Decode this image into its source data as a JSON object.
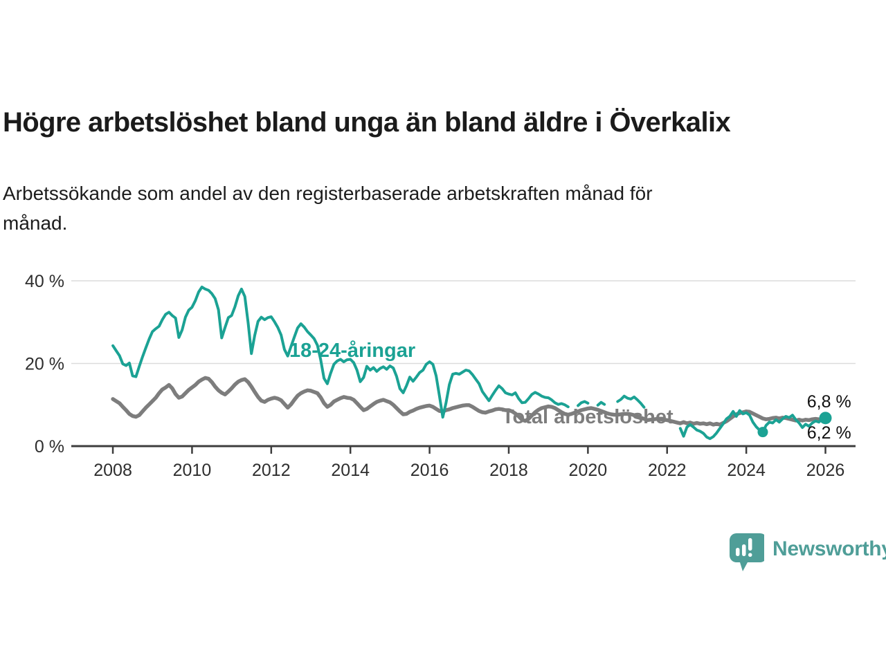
{
  "header": {
    "title": "Högre arbetslöshet bland unga än bland äldre i Överkalix",
    "subtitle_lines": [
      "Arbetssökande som andel av den registerbaserade arbetskraften månad för",
      "månad."
    ]
  },
  "footer": {
    "brand": "Newsworthy"
  },
  "colors": {
    "young_series": "#1ba294",
    "total_series": "#7d7d7d",
    "value_label": "#111111",
    "axis": "#3d3d3d",
    "grid": "#dbdbdb",
    "tick_label": "#2e2e2e",
    "logo": "#4f9e98"
  },
  "chart_data": {
    "type": "line",
    "title": "Högre arbetslöshet bland unga än bland äldre i Överkalix",
    "subtitle": "Arbetssökande som andel av den registerbaserade arbetskraften månad för månad.",
    "x_unit": "year (monthly points)",
    "y_unit": "percent of labour force",
    "x_start_year": 2008,
    "x_step_months": 1,
    "xlim": [
      2006.95,
      2026.76
    ],
    "ylim": [
      0,
      40
    ],
    "grid": "horizontal",
    "legend_position": "inline-labels",
    "x_ticks": [
      {
        "value": 2008,
        "label": "2008"
      },
      {
        "value": 2010,
        "label": "2010"
      },
      {
        "value": 2012,
        "label": "2012"
      },
      {
        "value": 2014,
        "label": "2014"
      },
      {
        "value": 2016,
        "label": "2016"
      },
      {
        "value": 2018,
        "label": "2018"
      },
      {
        "value": 2020,
        "label": "2020"
      },
      {
        "value": 2022,
        "label": "2022"
      },
      {
        "value": 2024,
        "label": "2024"
      },
      {
        "value": 2026,
        "label": "2026"
      }
    ],
    "y_ticks": [
      {
        "value": 0,
        "label": "0 %"
      },
      {
        "value": 20,
        "label": "20 %"
      },
      {
        "value": 40,
        "label": "40 %"
      }
    ],
    "series": [
      {
        "name": "18-24-åringar",
        "color": "#1ba294",
        "width": 4,
        "values": [
          24.3,
          23.1,
          21.9,
          19.9,
          19.5,
          20.1,
          17.0,
          16.8,
          19.3,
          21.6,
          23.8,
          25.9,
          27.7,
          28.4,
          29.0,
          30.6,
          31.9,
          32.4,
          31.6,
          31.0,
          26.3,
          28.1,
          31.2,
          32.9,
          33.6,
          35.2,
          37.3,
          38.5,
          38.0,
          37.7,
          36.9,
          35.7,
          33.0,
          26.2,
          28.7,
          31.1,
          31.6,
          33.7,
          36.4,
          38.0,
          36.2,
          29.8,
          22.4,
          26.8,
          30.2,
          31.2,
          30.6,
          31.1,
          31.3,
          30.1,
          28.7,
          26.9,
          23.4,
          21.8,
          24.1,
          26.4,
          28.6,
          29.6,
          28.8,
          27.7,
          26.9,
          26.0,
          24.4,
          20.9,
          16.4,
          15.1,
          17.6,
          19.8,
          20.6,
          21.0,
          20.4,
          20.9,
          21.0,
          20.2,
          18.4,
          15.6,
          16.6,
          19.3,
          18.4,
          19.0,
          18.1,
          18.8,
          19.2,
          18.6,
          19.4,
          18.9,
          16.9,
          13.9,
          12.9,
          14.6,
          16.7,
          15.7,
          16.7,
          17.8,
          18.4,
          19.8,
          20.4,
          19.8,
          17.0,
          12.1,
          7.0,
          10.5,
          14.9,
          17.4,
          17.6,
          17.4,
          17.9,
          18.4,
          18.2,
          17.3,
          16.2,
          15.1,
          13.2,
          12.1,
          11.0,
          12.3,
          13.5,
          14.6,
          13.9,
          12.9,
          12.6,
          12.4,
          12.9,
          11.5,
          10.5,
          10.6,
          11.5,
          12.5,
          13.0,
          12.6,
          12.1,
          11.8,
          11.7,
          11.2,
          10.5,
          10.1,
          10.3,
          10.0,
          9.5,
          null,
          null,
          9.8,
          10.5,
          10.8,
          10.4,
          null,
          null,
          9.9,
          10.6,
          10.1,
          null,
          null,
          null,
          10.8,
          11.3,
          12.1,
          11.6,
          11.4,
          11.9,
          11.2,
          10.4,
          9.4,
          null,
          null,
          null,
          null,
          null,
          null,
          null,
          null,
          null,
          null,
          4.3,
          2.4,
          4.6,
          5.2,
          4.6,
          3.9,
          3.6,
          3.1,
          2.2,
          1.8,
          2.3,
          3.2,
          4.3,
          5.4,
          6.6,
          7.2,
          8.4,
          7.2,
          8.6,
          7.8,
          8.1,
          7.5,
          5.8,
          4.7,
          3.9,
          3.4,
          5.0,
          5.8,
          5.6,
          6.4,
          5.8,
          6.6,
          7.2,
          6.9,
          7.5,
          6.4,
          5.6,
          4.5,
          5.3,
          4.8,
          5.6,
          6.1,
          5.8,
          6.6,
          6.8
        ]
      },
      {
        "name": "Total arbetslöshet",
        "color": "#7d7d7d",
        "width": 5.5,
        "values": [
          11.4,
          10.9,
          10.4,
          9.5,
          8.7,
          7.8,
          7.3,
          7.1,
          7.5,
          8.4,
          9.3,
          10.1,
          10.9,
          11.7,
          12.8,
          13.7,
          14.2,
          14.8,
          14.0,
          12.6,
          11.7,
          12.0,
          12.8,
          13.6,
          14.2,
          14.8,
          15.6,
          16.1,
          16.5,
          16.3,
          15.5,
          14.4,
          13.5,
          12.9,
          12.5,
          13.2,
          14.0,
          14.9,
          15.6,
          16.0,
          16.2,
          15.5,
          14.4,
          13.1,
          11.9,
          11.0,
          10.7,
          11.2,
          11.5,
          11.7,
          11.5,
          11.1,
          10.2,
          9.3,
          10.1,
          11.2,
          12.2,
          12.8,
          13.2,
          13.5,
          13.4,
          13.1,
          12.8,
          11.8,
          10.4,
          9.5,
          10.0,
          10.8,
          11.2,
          11.6,
          11.9,
          11.7,
          11.6,
          11.2,
          10.4,
          9.5,
          8.7,
          9.0,
          9.6,
          10.2,
          10.7,
          11.0,
          11.2,
          10.9,
          10.6,
          10.0,
          9.2,
          8.4,
          7.7,
          7.8,
          8.3,
          8.6,
          9.0,
          9.3,
          9.5,
          9.7,
          9.8,
          9.5,
          9.0,
          8.5,
          8.4,
          8.7,
          8.9,
          9.2,
          9.4,
          9.6,
          9.8,
          9.9,
          9.9,
          9.5,
          9.0,
          8.5,
          8.2,
          8.1,
          8.4,
          8.6,
          8.9,
          9.0,
          8.9,
          8.7,
          8.7,
          8.4,
          7.9,
          7.2,
          6.4,
          6.1,
          6.6,
          7.4,
          8.2,
          8.8,
          9.2,
          9.4,
          9.6,
          9.5,
          9.2,
          8.7,
          8.2,
          7.8,
          7.6,
          7.8,
          8.1,
          8.4,
          8.7,
          8.9,
          9.1,
          9.2,
          9.0,
          8.8,
          8.5,
          8.2,
          7.9,
          7.7,
          7.6,
          7.6,
          7.7,
          7.8,
          7.8,
          7.7,
          7.5,
          7.2,
          6.9,
          6.6,
          6.3,
          6.4,
          6.5,
          6.6,
          6.5,
          6.4,
          6.3,
          6.1,
          5.9,
          5.7,
          5.5,
          5.8,
          5.5,
          5.7,
          5.4,
          5.6,
          5.4,
          5.5,
          5.3,
          5.5,
          5.2,
          5.4,
          5.2,
          5.6,
          6.0,
          6.6,
          7.2,
          7.7,
          8.0,
          8.2,
          8.4,
          8.3,
          7.9,
          7.5,
          7.1,
          6.7,
          6.5,
          6.6,
          6.8,
          6.9,
          6.7,
          6.9,
          6.8,
          6.6,
          6.4,
          6.2,
          6.4,
          6.2,
          6.4,
          6.3,
          6.5,
          6.6,
          6.5,
          6.4,
          6.2
        ]
      }
    ],
    "markers": [
      {
        "series": 0,
        "year": 2024.417,
        "value": 3.4,
        "r": 7.5
      },
      {
        "series": 0,
        "year": 2026.0,
        "value": 6.8,
        "r": 9
      }
    ],
    "annotations": [
      {
        "text": "18-24-åringar",
        "year": 2014.05,
        "value": 21.6,
        "color": "#1ba294",
        "size": 29,
        "weight": "bold",
        "anchor": "middle",
        "name": "series-label-18-24"
      },
      {
        "text": "Total arbetslöshet",
        "year": 2019.99,
        "value": 5.5,
        "color": "#7d7d7d",
        "size": 29,
        "weight": "bold",
        "anchor": "middle",
        "name": "series-label-total"
      },
      {
        "text": "6,8 %",
        "year": 2026.65,
        "value": 9.4,
        "color": "#111111",
        "size": 25,
        "weight": "normal",
        "anchor": "end",
        "name": "value-label-young-latest"
      },
      {
        "text": "6,2 %",
        "year": 2026.65,
        "value": 1.8,
        "color": "#111111",
        "size": 25,
        "weight": "normal",
        "anchor": "end",
        "name": "value-label-total-latest"
      }
    ],
    "latest_values": {
      "18-24-åringar": "6,8 %",
      "Total arbetslöshet": "6,2 %"
    }
  }
}
